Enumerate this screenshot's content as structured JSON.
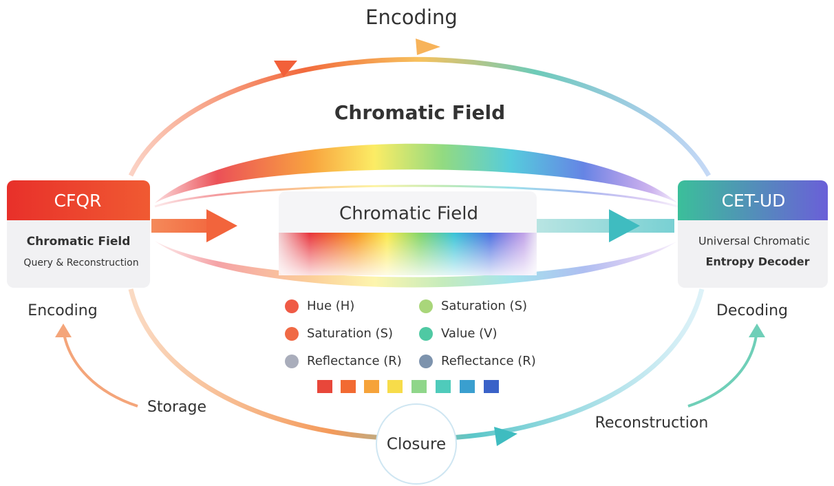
{
  "top_label": "Encoding",
  "field_title": "Chromatic Field",
  "center_box": {
    "title": "Chromatic Field"
  },
  "left_node": {
    "title": "CFQR",
    "line1": "Chromatic Field",
    "line2": "Query & Reconstruction"
  },
  "right_node": {
    "title": "CET-UD",
    "line1": "Universal Chromatic",
    "line2": "Entropy Decoder"
  },
  "labels": {
    "left": "Encoding",
    "right": "Decoding",
    "storage": "Storage",
    "reconstruction": "Reconstruction",
    "closure": "Closure"
  },
  "legend": [
    {
      "label": "Hue (H)",
      "color": "#ef5a45"
    },
    {
      "label": "Saturation (S)",
      "color": "#f06a45"
    },
    {
      "label": "Reflectance (R)",
      "color": "#a9adbb"
    },
    {
      "label": "Saturation (S)",
      "color": "#a9d67a"
    },
    {
      "label": "Value (V)",
      "color": "#4fc9a3"
    },
    {
      "label": "Reflectance (R)",
      "color": "#7d93ad"
    }
  ]
}
